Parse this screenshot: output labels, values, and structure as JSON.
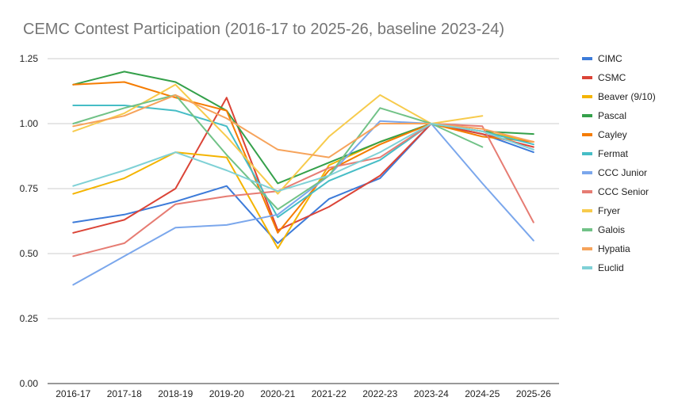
{
  "chart_data": {
    "type": "line",
    "title": "CEMC Contest Participation (2016-17 to 2025-26, baseline 2023-24)",
    "xlabel": "",
    "ylabel": "",
    "ylim": [
      0,
      1.25
    ],
    "yticks": [
      "0.00",
      "0.25",
      "0.50",
      "0.75",
      "1.00",
      "1.25"
    ],
    "grid": true,
    "legend_position": "right",
    "categories": [
      "2016-17",
      "2017-18",
      "2018-19",
      "2019-20",
      "2020-21",
      "2021-22",
      "2022-23",
      "2023-24",
      "2024-25",
      "2025-26"
    ],
    "series": [
      {
        "name": "CIMC",
        "color": "#3d7bd9",
        "values": [
          0.62,
          0.65,
          0.7,
          0.76,
          0.54,
          0.71,
          0.79,
          1.0,
          0.96,
          0.89
        ]
      },
      {
        "name": "CSMC",
        "color": "#db4437",
        "values": [
          0.58,
          0.63,
          0.75,
          1.1,
          0.59,
          0.68,
          0.8,
          1.0,
          0.96,
          0.91
        ]
      },
      {
        "name": "Beaver (9/10)",
        "color": "#f4b400",
        "values": [
          0.73,
          0.79,
          0.89,
          0.87,
          0.52,
          0.84,
          0.93,
          1.0,
          0.97,
          0.93
        ]
      },
      {
        "name": "Pascal",
        "color": "#34a04a",
        "values": [
          1.15,
          1.2,
          1.16,
          1.05,
          0.77,
          0.85,
          0.93,
          1.0,
          0.97,
          0.96
        ]
      },
      {
        "name": "Cayley",
        "color": "#f57c00",
        "values": [
          1.15,
          1.16,
          1.1,
          1.05,
          0.58,
          0.82,
          0.92,
          1.0,
          0.95,
          0.93
        ]
      },
      {
        "name": "Fermat",
        "color": "#46bdc6",
        "values": [
          1.07,
          1.07,
          1.05,
          0.99,
          0.64,
          0.78,
          0.86,
          1.0,
          0.97,
          0.92
        ]
      },
      {
        "name": "CCC Junior",
        "color": "#7ba7ec",
        "values": [
          0.38,
          0.49,
          0.6,
          0.61,
          0.65,
          0.8,
          1.01,
          1.0,
          0.77,
          0.55
        ]
      },
      {
        "name": "CCC Senior",
        "color": "#e67c73",
        "values": [
          0.49,
          0.54,
          0.69,
          0.72,
          0.74,
          0.83,
          0.87,
          1.0,
          0.99,
          0.62
        ]
      },
      {
        "name": "Fryer",
        "color": "#f7cb4d",
        "values": [
          0.97,
          1.04,
          1.15,
          0.95,
          0.73,
          0.95,
          1.11,
          1.0,
          1.03,
          null
        ]
      },
      {
        "name": "Galois",
        "color": "#71c287",
        "values": [
          1.0,
          1.06,
          1.11,
          0.88,
          0.67,
          0.8,
          1.06,
          1.0,
          0.91,
          null
        ]
      },
      {
        "name": "Hypatia",
        "color": "#f6a35b",
        "values": [
          0.99,
          1.03,
          1.11,
          1.02,
          0.9,
          0.87,
          1.0,
          1.0,
          0.98,
          0.93
        ]
      },
      {
        "name": "Euclid",
        "color": "#7fd1d6",
        "values": [
          0.76,
          0.82,
          0.89,
          0.82,
          0.74,
          0.8,
          0.89,
          1.0,
          0.97,
          0.9
        ]
      }
    ]
  }
}
